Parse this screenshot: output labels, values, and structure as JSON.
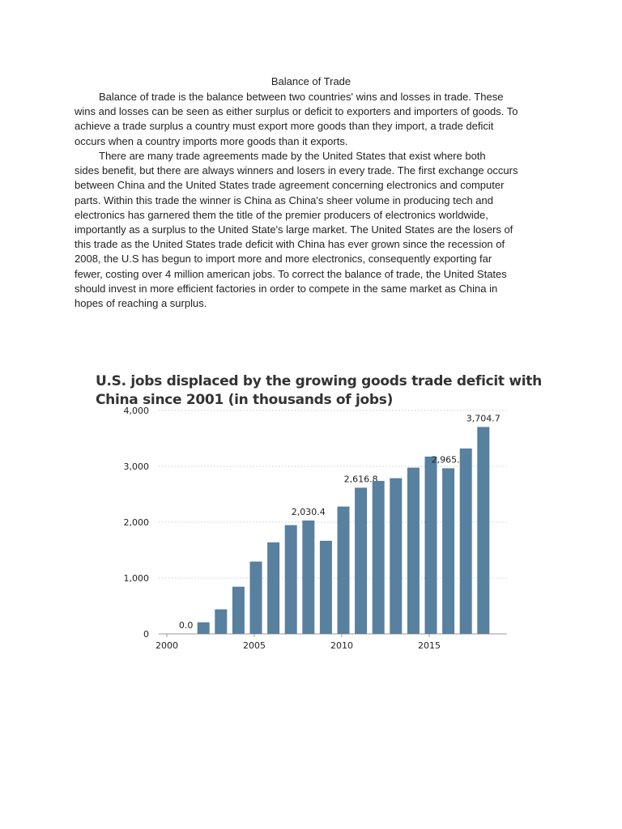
{
  "document": {
    "title": "Balance of Trade",
    "paragraphs": [
      [
        "Balance of trade is the balance between two countries' wins and losses in trade. These",
        "wins and losses can be seen as either surplus or deficit to exporters and importers of goods. To",
        "achieve a trade surplus a country must export more goods than they import, a trade deficit",
        "occurs when a country imports more goods than it exports."
      ],
      [
        "There are many trade agreements made by the United States that exist where both",
        "sides benefit, but there are always winners and losers in every trade. The first exchange occurs",
        "between China and the United States trade agreement concerning electronics and computer",
        "parts. Within this trade the winner is China as China's sheer volume in producing tech and",
        "electronics has garnered them the title of the premier producers of electronics worldwide,",
        "importantly as a surplus to the United State's large market. The United States are the losers of",
        "this trade as the United States trade deficit with China has ever grown since the recession of",
        "2008, the U.S has begun to import more and more electronics, consequently exporting far",
        "fewer, costing over 4 million american jobs. To correct the balance of trade, the United States",
        "should invest in more efficient factories in order to compete in the same market as China in",
        "hopes of reaching a surplus."
      ]
    ]
  },
  "chart_data": {
    "type": "bar",
    "title_lines": [
      "U.S. jobs displaced by the growing goods trade deficit with",
      "China since 2001 (in thousands of jobs)"
    ],
    "x": [
      2001,
      2002,
      2003,
      2004,
      2005,
      2006,
      2007,
      2008,
      2009,
      2010,
      2011,
      2012,
      2013,
      2014,
      2015,
      2016,
      2017,
      2018
    ],
    "values": [
      0.0,
      208,
      440,
      845,
      1295,
      1638,
      1947,
      2030.4,
      1667,
      2280,
      2616.8,
      2739,
      2787,
      2976,
      3174,
      2965.2,
      3319,
      3704.7
    ],
    "data_labels": {
      "2001": "0.0",
      "2008": "2,030.4",
      "2011": "2,616.8",
      "2016": "2,965.2",
      "2018": "3,704.7"
    },
    "yticks": [
      {
        "v": 0,
        "label": "0"
      },
      {
        "v": 1000,
        "label": "1,000"
      },
      {
        "v": 2000,
        "label": "2,000"
      },
      {
        "v": 3000,
        "label": "3,000"
      },
      {
        "v": 4000,
        "label": "4,000"
      }
    ],
    "xticks": [
      {
        "v": 2000,
        "label": "2000"
      },
      {
        "v": 2005,
        "label": "2005"
      },
      {
        "v": 2010,
        "label": "2010"
      },
      {
        "v": 2015,
        "label": "2015"
      }
    ],
    "ylim": [
      0,
      4000
    ],
    "xlim": [
      2000,
      2019
    ],
    "grid": true,
    "bar_color": "#58809f"
  }
}
